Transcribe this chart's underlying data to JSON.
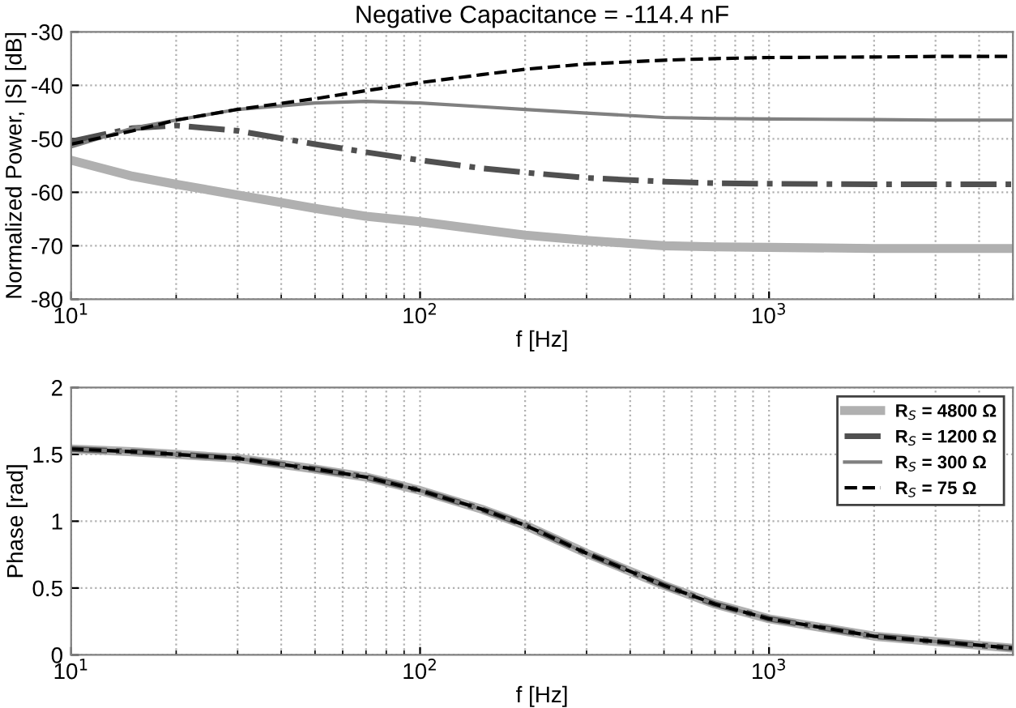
{
  "chart_data": [
    {
      "type": "line",
      "title": "Negative Capacitance = -114.4 nF",
      "xlabel": "f [Hz]",
      "ylabel": "Normalized Power, |S| [dB]",
      "log": "x",
      "grid": true,
      "legend": false,
      "x": [
        10,
        15,
        20,
        30,
        50,
        70,
        100,
        150,
        200,
        300,
        500,
        700,
        1000,
        2000,
        3000,
        5000
      ],
      "xlim": [
        10,
        5000
      ],
      "xticks": [
        {
          "value": 10,
          "label": "10$^{1}$"
        },
        {
          "value": 100,
          "label": "10$^{2}$"
        },
        {
          "value": 1000,
          "label": "10$^{3}$"
        }
      ],
      "ylim": [
        -80,
        -30
      ],
      "yticks": [
        -80,
        -70,
        -60,
        -50,
        -40,
        -30
      ],
      "series": [
        {
          "color": "#b0b0b0",
          "line_style": "solid",
          "values": [
            -54,
            -57,
            -58.5,
            -60.5,
            -63,
            -64.5,
            -65.5,
            -67,
            -68,
            -69,
            -70,
            -70.2,
            -70.3,
            -70.5,
            -70.5,
            -70.5
          ]
        },
        {
          "color": "#505050",
          "line_style": "dashdot",
          "values": [
            -50.5,
            -48,
            -47.5,
            -48.5,
            -51,
            -52.5,
            -54,
            -55.5,
            -56.3,
            -57.3,
            -58,
            -58.3,
            -58.4,
            -58.5,
            -58.5,
            -58.5
          ]
        },
        {
          "color": "#808080",
          "line_style": "solid",
          "values": [
            -51.5,
            -48,
            -46.5,
            -44.5,
            -43.3,
            -43,
            -43.3,
            -44,
            -44.5,
            -45.2,
            -46,
            -46.2,
            -46.3,
            -46.4,
            -46.5,
            -46.5
          ]
        },
        {
          "color": "#000000",
          "line_style": "dashed",
          "values": [
            -51,
            -48.5,
            -46.5,
            -44.5,
            -42.5,
            -41,
            -39.5,
            -38,
            -37,
            -36,
            -35.3,
            -35,
            -34.8,
            -34.7,
            -34.6,
            -34.6
          ]
        }
      ]
    },
    {
      "type": "line",
      "xlabel": "f [Hz]",
      "ylabel": "Phase [rad]",
      "log": "x",
      "grid": true,
      "legend": "top right",
      "x": [
        10,
        15,
        20,
        30,
        50,
        70,
        100,
        150,
        200,
        300,
        500,
        700,
        1000,
        2000,
        3000,
        5000
      ],
      "xlim": [
        10,
        5000
      ],
      "xticks": [
        {
          "value": 10,
          "label": "10$^{1}$"
        },
        {
          "value": 100,
          "label": "10$^{2}$"
        },
        {
          "value": 1000,
          "label": "10$^{3}$"
        }
      ],
      "ylim": [
        0,
        2
      ],
      "yticks": [
        0,
        0.5,
        1,
        1.5,
        2
      ],
      "series": [
        {
          "name": "R$_{S}$ = 4800 Ω",
          "color": "#b0b0b0",
          "line_style": "solid",
          "values": [
            1.54,
            1.52,
            1.5,
            1.47,
            1.39,
            1.33,
            1.23,
            1.09,
            0.97,
            0.76,
            0.52,
            0.38,
            0.27,
            0.14,
            0.1,
            0.05
          ]
        },
        {
          "name": "R$_{S}$ = 1200 Ω",
          "color": "#505050",
          "line_style": "dashdot",
          "values": [
            1.54,
            1.52,
            1.5,
            1.47,
            1.39,
            1.33,
            1.23,
            1.09,
            0.97,
            0.76,
            0.52,
            0.38,
            0.27,
            0.14,
            0.1,
            0.05
          ]
        },
        {
          "name": "R$_{S}$ = 300 Ω",
          "color": "#808080",
          "line_style": "solid",
          "values": [
            1.54,
            1.52,
            1.5,
            1.47,
            1.39,
            1.33,
            1.23,
            1.09,
            0.97,
            0.76,
            0.52,
            0.38,
            0.27,
            0.14,
            0.1,
            0.05
          ]
        },
        {
          "name": "R$_{S}$ = 75 Ω",
          "color": "#000000",
          "line_style": "dashed",
          "values": [
            1.54,
            1.52,
            1.5,
            1.47,
            1.39,
            1.33,
            1.23,
            1.09,
            0.97,
            0.76,
            0.52,
            0.38,
            0.27,
            0.14,
            0.1,
            0.05
          ]
        }
      ]
    }
  ]
}
